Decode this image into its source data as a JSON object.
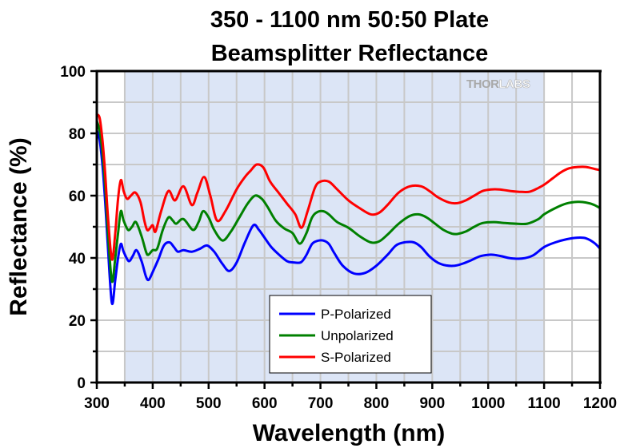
{
  "chart_data": {
    "type": "line",
    "title": [
      "350 - 1100 nm 50:50 Plate",
      "Beamsplitter Reflectance"
    ],
    "xlabel": "Wavelength (nm)",
    "ylabel": "Reflectance (%)",
    "xlim": [
      300,
      1200
    ],
    "ylim": [
      0,
      100
    ],
    "xticks": [
      300,
      400,
      500,
      600,
      700,
      800,
      900,
      1000,
      1100,
      1200
    ],
    "xtick_labels": [
      "300",
      "400",
      "500",
      "600",
      "700",
      "800",
      "900",
      "1000",
      "1100",
      "1200"
    ],
    "yticks": [
      0,
      20,
      40,
      60,
      80,
      100
    ],
    "ytick_labels": [
      "0",
      "20",
      "40",
      "60",
      "80",
      "100"
    ],
    "minor_x_step": 50,
    "minor_y_step": 10,
    "grid": true,
    "shaded_range": [
      350,
      1100
    ],
    "shaded_color": "#dce5f6",
    "watermark": {
      "text_dark": "THOR",
      "text_light": "LABS"
    },
    "legend": {
      "placement": "bottom-center"
    },
    "series": [
      {
        "name": "P-Polarized",
        "color": "#0000ff",
        "x": [
          300,
          305,
          310,
          315,
          320,
          327,
          333,
          338,
          343,
          348,
          357,
          364,
          371,
          380,
          388,
          393,
          400,
          410,
          420,
          430,
          438,
          445,
          455,
          470,
          485,
          497,
          510,
          525,
          537,
          550,
          565,
          580,
          590,
          600,
          612,
          625,
          640,
          650,
          665,
          675,
          685,
          695,
          705,
          715,
          725,
          740,
          760,
          780,
          800,
          820,
          835,
          850,
          867,
          880,
          895,
          910,
          925,
          940,
          955,
          970,
          985,
          1000,
          1010,
          1025,
          1040,
          1060,
          1080,
          1100,
          1120,
          1140,
          1160,
          1175,
          1190,
          1200
        ],
        "y": [
          81,
          78,
          70,
          58,
          43,
          25.5,
          33,
          40,
          44.5,
          42,
          39,
          40.5,
          42.5,
          39,
          34,
          33,
          35.5,
          39.5,
          44,
          45,
          43.5,
          42,
          42.5,
          42,
          43,
          44,
          42,
          38,
          35.8,
          38.5,
          45,
          50.5,
          49,
          46.5,
          43.5,
          41.2,
          39,
          38.6,
          38.6,
          41,
          44.5,
          45.5,
          45.6,
          44.5,
          41.5,
          37.5,
          35,
          35.2,
          37.5,
          41,
          44,
          45,
          45,
          43.5,
          40.5,
          38.5,
          37.6,
          37.5,
          38.2,
          39.3,
          40.5,
          41,
          41,
          40.5,
          39.9,
          39.8,
          40.8,
          43.5,
          45,
          46,
          46.5,
          46.3,
          44.8,
          43
        ]
      },
      {
        "name": "Unpolarized",
        "color": "#008000",
        "x": [
          300,
          305,
          310,
          315,
          320,
          327,
          333,
          338,
          343,
          348,
          356,
          363,
          370,
          380,
          388,
          392,
          400,
          408,
          418,
          428,
          436,
          442,
          455,
          472,
          482,
          490,
          500,
          510,
          525,
          540,
          555,
          570,
          583,
          595,
          605,
          620,
          635,
          650,
          663,
          675,
          685,
          695,
          705,
          715,
          730,
          750,
          770,
          790,
          805,
          820,
          840,
          860,
          875,
          890,
          905,
          920,
          935,
          945,
          960,
          975,
          990,
          1010,
          1030,
          1050,
          1070,
          1090,
          1100,
          1120,
          1140,
          1160,
          1175,
          1190,
          1200
        ],
        "y": [
          84,
          81,
          74,
          63,
          48,
          32.5,
          40,
          48,
          55,
          52,
          49,
          50,
          51.5,
          47,
          42,
          41,
          42.5,
          43,
          49,
          53,
          52,
          51,
          52.5,
          49,
          51.5,
          55,
          53,
          49,
          45.6,
          48.5,
          53,
          57.5,
          60,
          59,
          56.5,
          52,
          49.5,
          48,
          44.6,
          48,
          53,
          54.8,
          55,
          54,
          51.5,
          49.7,
          47,
          45,
          45.3,
          47.5,
          51,
          53.5,
          54,
          53,
          51,
          49,
          47.8,
          47.7,
          48.5,
          50,
          51.2,
          51.5,
          51.2,
          51,
          51,
          52.5,
          54,
          56,
          57.5,
          58,
          57.8,
          57,
          56
        ]
      },
      {
        "name": "S-Polarized",
        "color": "#ff0000",
        "x": [
          300,
          305,
          310,
          315,
          320,
          327,
          333,
          338,
          343,
          348,
          354,
          361,
          369,
          378,
          385,
          390,
          395,
          400,
          405,
          415,
          428,
          440,
          455,
          470,
          480,
          492,
          503,
          515,
          530,
          550,
          565,
          575,
          586,
          598,
          610,
          625,
          640,
          655,
          666,
          677,
          690,
          700,
          715,
          730,
          750,
          770,
          790,
          805,
          820,
          840,
          860,
          880,
          895,
          910,
          930,
          945,
          960,
          975,
          990,
          1005,
          1020,
          1040,
          1060,
          1075,
          1090,
          1100,
          1115,
          1130,
          1145,
          1160,
          1175,
          1190,
          1200
        ],
        "y": [
          86,
          85,
          78,
          67,
          53,
          39.5,
          48,
          59,
          65,
          61.5,
          59,
          60,
          61,
          58,
          52,
          49,
          49.5,
          50.5,
          48.5,
          55,
          61.5,
          58.5,
          63,
          57,
          61,
          66,
          60,
          52,
          55,
          62,
          66,
          68,
          70,
          69,
          64.5,
          61,
          57.5,
          54,
          49.7,
          55,
          62.5,
          64.5,
          64.5,
          62,
          58.5,
          56,
          54,
          54.5,
          57,
          61,
          63,
          63,
          61.5,
          59.5,
          57.8,
          57.6,
          58.5,
          60,
          61.5,
          62,
          62,
          61.5,
          61.2,
          61.3,
          62.5,
          63.5,
          65.5,
          67.5,
          68.8,
          69.2,
          69.2,
          68.6,
          68.2
        ]
      }
    ]
  }
}
